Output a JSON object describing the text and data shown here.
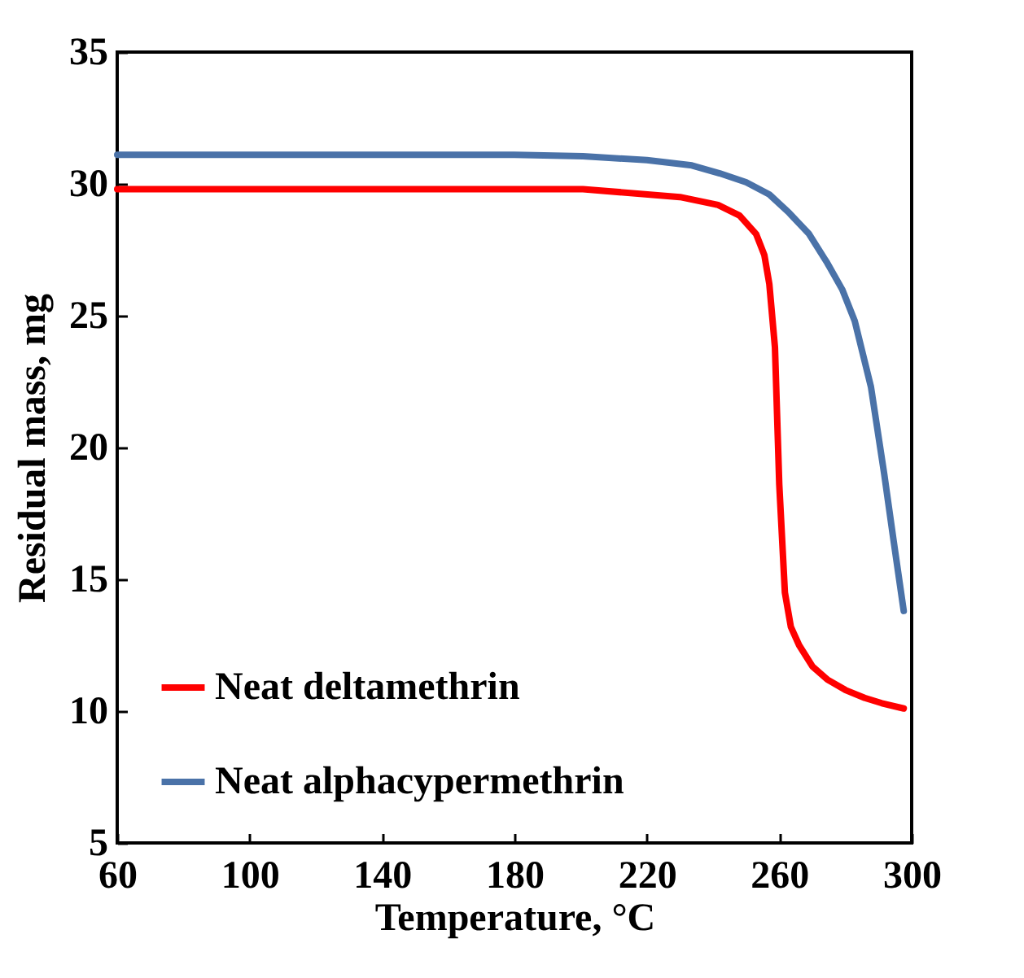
{
  "chart_data": {
    "type": "line",
    "xlabel": "Temperature, °C",
    "ylabel": "Residual mass, mg",
    "xlim": [
      60,
      300
    ],
    "xticks": [
      60,
      100,
      140,
      180,
      220,
      260,
      300
    ],
    "ylim": [
      5,
      35
    ],
    "yticks": [
      5,
      10,
      15,
      20,
      25,
      30,
      35
    ],
    "grid": false,
    "legend": "bottom left",
    "marker": "none",
    "line_style": "solid",
    "series": [
      {
        "name": "Neat deltamethrin",
        "color": "#ff0000",
        "x": [
          60,
          100,
          150,
          200.7,
          230,
          241.5,
          248,
          253,
          255.5,
          257,
          258.7,
          260,
          261.7,
          263.5,
          266,
          270,
          274.5,
          280,
          285.8,
          291,
          297.6
        ],
        "values": [
          29.8,
          29.8,
          29.8,
          29.8,
          29.5,
          29.2,
          28.8,
          28.1,
          27.3,
          26.2,
          23.8,
          18.6,
          14.5,
          13.2,
          12.5,
          11.7,
          11.2,
          10.8,
          10.5,
          10.3,
          10.1
        ]
      },
      {
        "name": "Neat alphacypermethrin",
        "color": "#4a72a8",
        "x": [
          60,
          100,
          150,
          180,
          200.7,
          220,
          233.6,
          242,
          250,
          257,
          263,
          269,
          274.5,
          279,
          282.8,
          287.7,
          291.7,
          294.5,
          297.6
        ],
        "values": [
          31.1,
          31.1,
          31.1,
          31.1,
          31.05,
          30.9,
          30.7,
          30.4,
          30.06,
          29.6,
          28.9,
          28.1,
          27.0,
          26.0,
          24.8,
          22.3,
          19.0,
          16.5,
          13.8
        ]
      }
    ]
  }
}
